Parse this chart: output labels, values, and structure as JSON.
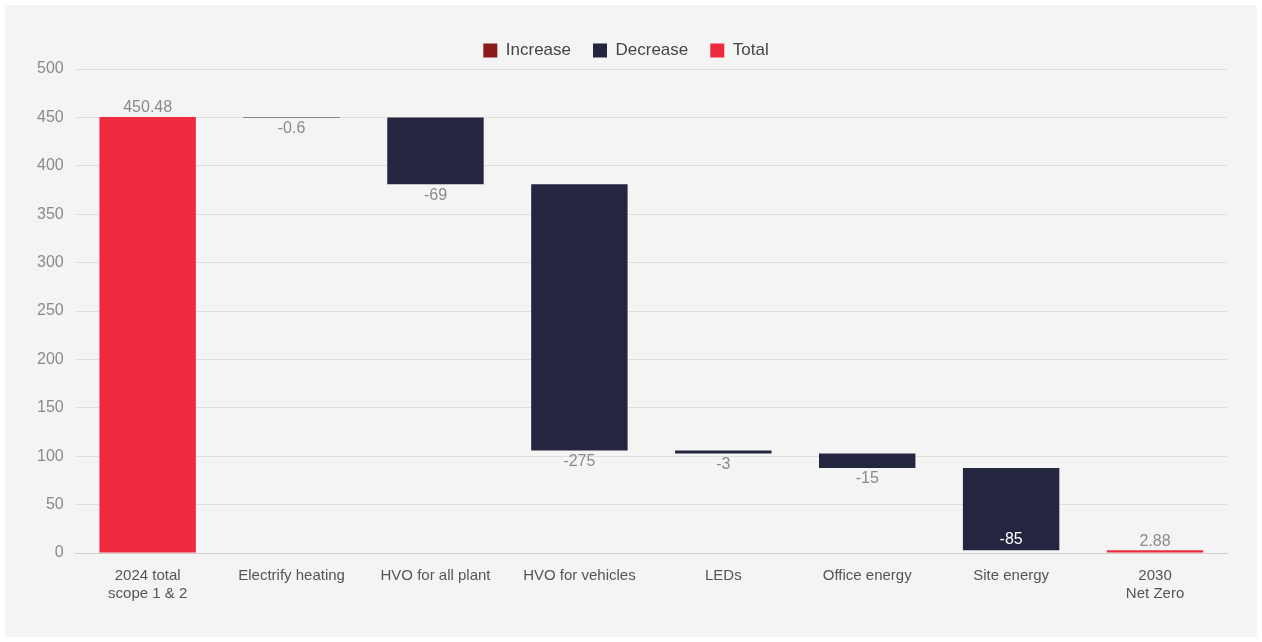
{
  "chart_data": {
    "type": "bar",
    "categories": [
      "2024 total\nscope 1 & 2",
      "Electrify heating",
      "HVO for all plant",
      "HVO for vehicles",
      "LEDs",
      "Office energy",
      "Site energy",
      "2030\nNet Zero"
    ],
    "series": [
      {
        "name": "Increase",
        "color": "#8b1a1a",
        "values": [
          null,
          null,
          null,
          null,
          null,
          null,
          null,
          null
        ]
      },
      {
        "name": "Decrease",
        "color": "#242640",
        "values": [
          null,
          -0.6,
          -69,
          -275,
          -3,
          -15,
          -85,
          null
        ],
        "base": [
          null,
          450.48,
          449.88,
          380.88,
          105.88,
          102.88,
          87.88,
          null
        ]
      },
      {
        "name": "Total",
        "color": "#ee2a3f",
        "values": [
          450.48,
          null,
          null,
          null,
          null,
          null,
          null,
          2.88
        ],
        "base": [
          0,
          null,
          null,
          null,
          null,
          null,
          null,
          0
        ]
      }
    ],
    "ylim": [
      0,
      500
    ],
    "yticks": [
      0,
      50,
      100,
      150,
      200,
      250,
      300,
      350,
      400,
      450,
      500
    ],
    "grid": "y",
    "legend": "top",
    "data_labels": true
  }
}
